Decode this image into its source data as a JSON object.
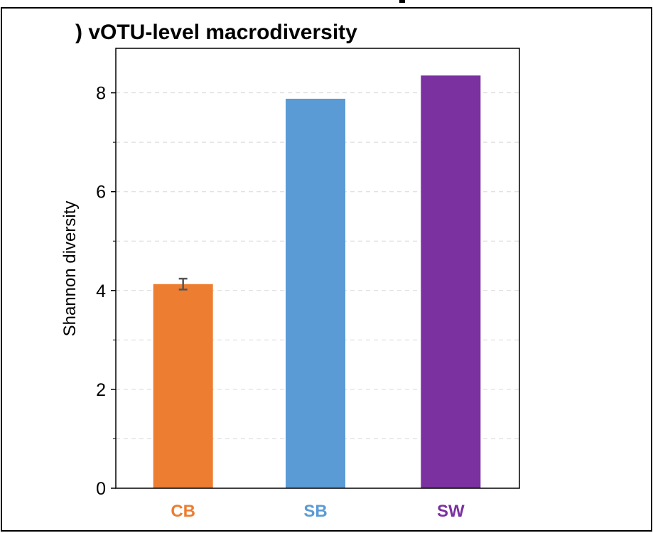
{
  "chart_data": {
    "type": "bar",
    "title": ") vOTU-level macrodiversity",
    "xlabel": "",
    "ylabel": "Shannon diversity",
    "ylim": [
      0,
      8.9
    ],
    "yticks": [
      "0",
      "2",
      "4",
      "6",
      "8"
    ],
    "grid": true,
    "categories": [
      "CB",
      "SB",
      "SW"
    ],
    "values": [
      4.13,
      7.88,
      8.35
    ],
    "error": [
      0.11,
      0,
      0
    ],
    "colors": [
      "#ed7d31",
      "#5b9bd5",
      "#7b31a0"
    ]
  }
}
